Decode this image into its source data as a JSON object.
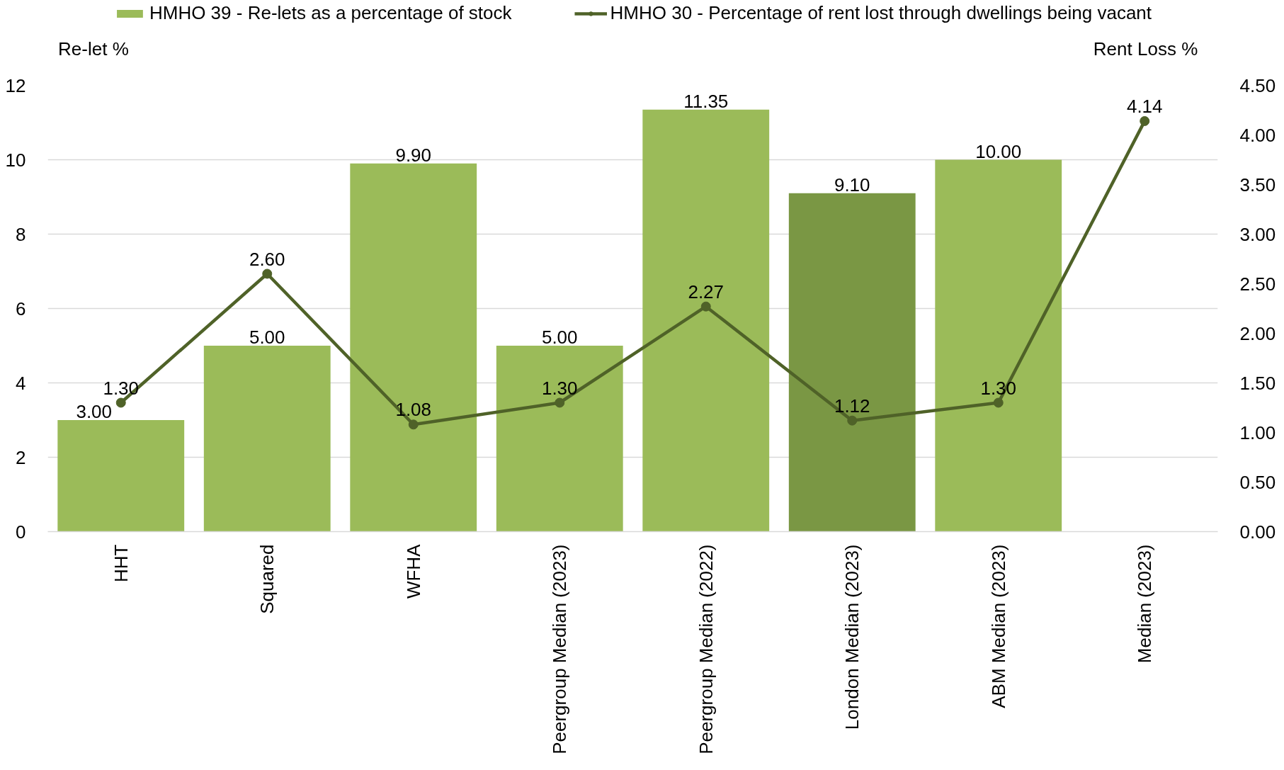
{
  "chart_data": {
    "type": "bar",
    "categories": [
      "HHT",
      "Squared",
      "WFHA",
      "Peergroup Median (2023)",
      "Peergroup Median (2022)",
      "London Median (2023)",
      "ABM Median (2023)",
      "Median (2023)"
    ],
    "series": [
      {
        "name": "HMHO 39 - Re-lets as a percentage of stock",
        "color": "#9bbb59",
        "colors": [
          "#9bbb59",
          "#9bbb59",
          "#9bbb59",
          "#9bbb59",
          "#9bbb59",
          "#7a9744",
          "#9bbb59",
          "#9bbb59"
        ],
        "values": [
          3.0,
          5.0,
          9.9,
          5.0,
          11.35,
          9.1,
          10.0,
          null
        ],
        "value_labels": [
          "3.00",
          "5.00",
          "9.90",
          "5.00",
          "11.35",
          "9.10",
          "10.00",
          null
        ]
      },
      {
        "type": "line",
        "name": "HMHO 30 - Percentage of rent lost through dwellings being vacant",
        "color": "#4f6228",
        "axis": "y2",
        "values": [
          1.3,
          2.6,
          1.08,
          1.3,
          2.27,
          1.12,
          1.3,
          4.14
        ],
        "value_labels": [
          "1.30",
          "2.60",
          "1.08",
          "1.30",
          "2.27",
          "1.12",
          "1.30",
          "4.14"
        ]
      }
    ],
    "ylabel": "Re-let %",
    "y2label": "Rent Loss %",
    "ylim": [
      0,
      12
    ],
    "yticks": [
      0,
      2,
      4,
      6,
      8,
      10,
      12
    ],
    "y2lim": [
      0,
      4.5
    ],
    "y2ticks": [
      {
        "value": 0,
        "label": "0.00"
      },
      {
        "value": 0.5,
        "label": "0.50"
      },
      {
        "value": 1,
        "label": "1.00"
      },
      {
        "value": 1.5,
        "label": "1.50"
      },
      {
        "value": 2,
        "label": "2.00"
      },
      {
        "value": 2.5,
        "label": "2.50"
      },
      {
        "value": 3,
        "label": "3.00"
      },
      {
        "value": 3.5,
        "label": "3.50"
      },
      {
        "value": 4,
        "label": "4.00"
      },
      {
        "value": 4.5,
        "label": "4.50"
      }
    ],
    "grid": "y",
    "legend": "top",
    "marker": "circle"
  }
}
